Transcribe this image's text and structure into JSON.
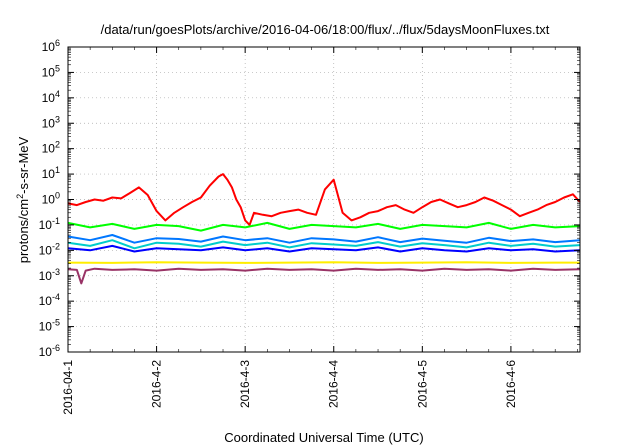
{
  "chart_data": {
    "type": "line",
    "title": "/data/run/goesPlots/archive/2016-04-06/18:00/flux/../flux/5daysMoonFluxes.txt",
    "xlabel": "Coordinated Universal Time (UTC)",
    "ylabel": {
      "pre": "protons/cm",
      "sup": "2",
      "post": "-s-sr-MeV"
    },
    "yscale": "log",
    "ylim_exp": [
      -6,
      6
    ],
    "y_ticks": [
      {
        "base": "10",
        "exp": "6"
      },
      {
        "base": "10",
        "exp": "5"
      },
      {
        "base": "10",
        "exp": "4"
      },
      {
        "base": "10",
        "exp": "3"
      },
      {
        "base": "10",
        "exp": "2"
      },
      {
        "base": "10",
        "exp": "1"
      },
      {
        "base": "10",
        "exp": "0"
      },
      {
        "base": "10",
        "exp": "-1"
      },
      {
        "base": "10",
        "exp": "-2"
      },
      {
        "base": "10",
        "exp": "-3"
      },
      {
        "base": "10",
        "exp": "-4"
      },
      {
        "base": "10",
        "exp": "-5"
      },
      {
        "base": "10",
        "exp": "-6"
      }
    ],
    "x_ticks": [
      "2016-04-1",
      "2016-4-2",
      "2016-4-3",
      "2016-4-4",
      "2016-4-5",
      "2016-4-6"
    ],
    "xlim_days": [
      0,
      5.78
    ],
    "grid": true,
    "series": [
      {
        "color": "#ff0000",
        "x": [
          0,
          0.1,
          0.2,
          0.3,
          0.4,
          0.5,
          0.6,
          0.7,
          0.8,
          0.9,
          1.0,
          1.1,
          1.2,
          1.3,
          1.4,
          1.5,
          1.6,
          1.7,
          1.75,
          1.8,
          1.85,
          1.9,
          1.95,
          2.0,
          2.05,
          2.1,
          2.2,
          2.3,
          2.4,
          2.5,
          2.6,
          2.7,
          2.8,
          2.9,
          3.0,
          3.1,
          3.2,
          3.3,
          3.4,
          3.5,
          3.6,
          3.7,
          3.8,
          3.9,
          4.0,
          4.1,
          4.2,
          4.3,
          4.4,
          4.5,
          4.6,
          4.7,
          4.8,
          4.9,
          5.0,
          5.1,
          5.2,
          5.3,
          5.4,
          5.5,
          5.6,
          5.7,
          5.78
        ],
        "y": [
          0.7,
          0.6,
          0.8,
          1.0,
          0.9,
          1.2,
          1.1,
          1.8,
          3.0,
          1.5,
          0.35,
          0.15,
          0.3,
          0.5,
          0.8,
          1.2,
          3.5,
          8.0,
          10.0,
          6.0,
          3.0,
          1.0,
          0.5,
          0.15,
          0.1,
          0.3,
          0.25,
          0.22,
          0.3,
          0.35,
          0.4,
          0.3,
          0.25,
          2.5,
          6.0,
          0.3,
          0.15,
          0.2,
          0.3,
          0.35,
          0.5,
          0.6,
          0.4,
          0.3,
          0.5,
          0.8,
          1.0,
          0.7,
          0.5,
          0.6,
          0.8,
          1.2,
          0.9,
          0.6,
          0.4,
          0.22,
          0.3,
          0.4,
          0.6,
          0.8,
          1.2,
          1.6,
          0.8
        ]
      },
      {
        "color": "#00ff00",
        "x": [
          0,
          0.25,
          0.5,
          0.75,
          1.0,
          1.25,
          1.5,
          1.75,
          2.0,
          2.25,
          2.5,
          2.75,
          3.0,
          3.25,
          3.5,
          3.75,
          4.0,
          4.25,
          4.5,
          4.75,
          5.0,
          5.25,
          5.5,
          5.78
        ],
        "y": [
          0.12,
          0.08,
          0.11,
          0.07,
          0.1,
          0.09,
          0.06,
          0.1,
          0.08,
          0.12,
          0.07,
          0.1,
          0.09,
          0.08,
          0.11,
          0.07,
          0.1,
          0.09,
          0.08,
          0.12,
          0.07,
          0.1,
          0.08,
          0.09
        ]
      },
      {
        "color": "#00cccc",
        "x": [
          0,
          0.25,
          0.5,
          0.75,
          1.0,
          1.25,
          1.5,
          1.75,
          2.0,
          2.25,
          2.5,
          2.75,
          3.0,
          3.25,
          3.5,
          3.75,
          4.0,
          4.25,
          4.5,
          4.75,
          5.0,
          5.25,
          5.5,
          5.78
        ],
        "y": [
          0.02,
          0.015,
          0.025,
          0.012,
          0.02,
          0.018,
          0.014,
          0.022,
          0.016,
          0.02,
          0.013,
          0.019,
          0.017,
          0.015,
          0.021,
          0.014,
          0.019,
          0.016,
          0.013,
          0.02,
          0.015,
          0.018,
          0.014,
          0.016
        ]
      },
      {
        "color": "#0077ff",
        "x": [
          0,
          0.25,
          0.5,
          0.75,
          1.0,
          1.25,
          1.5,
          1.75,
          2.0,
          2.25,
          2.5,
          2.75,
          3.0,
          3.25,
          3.5,
          3.75,
          4.0,
          4.25,
          4.5,
          4.75,
          5.0,
          5.25,
          5.5,
          5.78
        ],
        "y": [
          0.035,
          0.025,
          0.04,
          0.02,
          0.03,
          0.028,
          0.022,
          0.035,
          0.025,
          0.03,
          0.02,
          0.03,
          0.027,
          0.022,
          0.033,
          0.021,
          0.029,
          0.024,
          0.02,
          0.031,
          0.023,
          0.027,
          0.021,
          0.025
        ]
      },
      {
        "color": "#0000ff",
        "x": [
          0,
          0.25,
          0.5,
          0.75,
          1.0,
          1.25,
          1.5,
          1.75,
          2.0,
          2.25,
          2.5,
          2.75,
          3.0,
          3.25,
          3.5,
          3.75,
          4.0,
          4.25,
          4.5,
          4.75,
          5.0,
          5.25,
          5.5,
          5.78
        ],
        "y": [
          0.012,
          0.01,
          0.015,
          0.009,
          0.012,
          0.011,
          0.01,
          0.013,
          0.01,
          0.012,
          0.009,
          0.012,
          0.011,
          0.01,
          0.013,
          0.009,
          0.012,
          0.01,
          0.009,
          0.012,
          0.01,
          0.011,
          0.009,
          0.01
        ]
      },
      {
        "color": "#ffee00",
        "x": [
          0,
          0.5,
          1.0,
          1.5,
          2.0,
          2.5,
          3.0,
          3.5,
          4.0,
          4.5,
          5.0,
          5.5,
          5.78
        ],
        "y": [
          0.0033,
          0.0032,
          0.0034,
          0.0033,
          0.0032,
          0.0033,
          0.0034,
          0.0032,
          0.0033,
          0.0034,
          0.0032,
          0.0033,
          0.0033
        ]
      },
      {
        "color": "#993366",
        "x": [
          0,
          0.1,
          0.15,
          0.2,
          0.3,
          0.5,
          0.75,
          1.0,
          1.25,
          1.5,
          1.75,
          2.0,
          2.25,
          2.5,
          2.75,
          3.0,
          3.25,
          3.5,
          3.75,
          4.0,
          4.25,
          4.5,
          4.75,
          5.0,
          5.25,
          5.5,
          5.78
        ],
        "y": [
          0.0018,
          0.0017,
          0.0005,
          0.0016,
          0.0019,
          0.0017,
          0.0018,
          0.0016,
          0.0019,
          0.0017,
          0.0018,
          0.0016,
          0.0019,
          0.0017,
          0.0018,
          0.0016,
          0.0019,
          0.0017,
          0.0018,
          0.0016,
          0.0019,
          0.0017,
          0.0018,
          0.0016,
          0.0019,
          0.0017,
          0.0018
        ]
      }
    ]
  }
}
